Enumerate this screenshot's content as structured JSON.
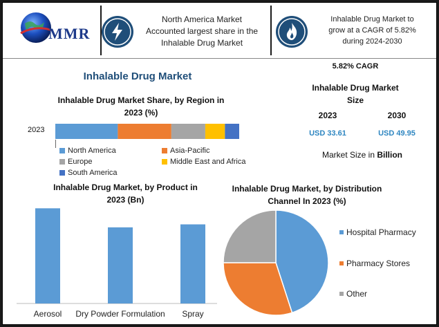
{
  "header": {
    "logo_text": "MMR",
    "msg1": [
      "North America Market",
      "Accounted largest share in the",
      "Inhalable Drug Market"
    ],
    "msg2": [
      "Inhalable Drug Market to",
      "grow at a CAGR of 5.82%",
      "during 2024-2030"
    ],
    "badge1_icon": "lightning-icon",
    "badge2_icon": "flame-icon"
  },
  "main_title": "Inhalable Drug Market",
  "cagr": "5.82% CAGR",
  "size_title": [
    "Inhalable Drug Market",
    "Size"
  ],
  "size_years": [
    "2023",
    "2030"
  ],
  "size_values": [
    "USD 33.61",
    "USD 49.95"
  ],
  "size_note_prefix": "Market Size in ",
  "size_note_bold": "Billion",
  "colors": {
    "blue": "#5b9bd5",
    "orange": "#ed7d31",
    "gray": "#a5a5a5",
    "gold": "#ffc000",
    "darkblue": "#4472c4",
    "badge": "#1f4e79"
  },
  "chart_data": [
    {
      "type": "bar",
      "orientation": "horizontal-stacked",
      "title": "Inhalable Drug Market Share, by Region in 2023 (%)",
      "categories": [
        "2023"
      ],
      "series": [
        {
          "name": "North America",
          "values": [
            35
          ]
        },
        {
          "name": "Asia-Pacific",
          "values": [
            30
          ]
        },
        {
          "name": "Europe",
          "values": [
            19
          ]
        },
        {
          "name": "Middle East and Africa",
          "values": [
            11
          ]
        },
        {
          "name": "South America",
          "values": [
            8
          ]
        }
      ],
      "legend": "bottom"
    },
    {
      "type": "bar",
      "title": "Inhalable Drug Market, by Product in 2023 (Bn)",
      "categories": [
        "Aerosol",
        "Dry Powder Formulation",
        "Spray"
      ],
      "values": [
        16,
        12.8,
        13.3
      ],
      "ylim": [
        0,
        16.5
      ]
    },
    {
      "type": "pie",
      "title": "Inhalable Drug Market, by Distribution Channel In 2023 (%)",
      "labels": [
        "Hospital Pharmacy",
        "Pharmacy Stores",
        "Other"
      ],
      "values": [
        45,
        30,
        25
      ],
      "legend": "right"
    }
  ]
}
